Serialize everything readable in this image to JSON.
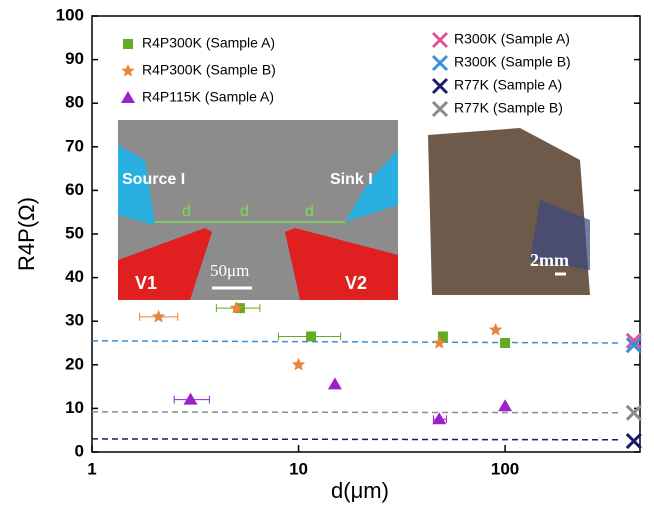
{
  "chart_data": {
    "type": "scatter",
    "x_label": "d(μm)",
    "y_label": "R4P(Ω)",
    "xscale": "log",
    "xlim": [
      1,
      450
    ],
    "xticks": [
      1,
      10,
      100
    ],
    "ylim": [
      0,
      100
    ],
    "yticks": [
      0,
      10,
      20,
      30,
      40,
      50,
      60,
      70,
      80,
      90,
      100
    ],
    "series": [
      {
        "name": "R4P300K (Sample A)",
        "color": "#66aa22",
        "marker": "square",
        "x": [
          5.2,
          11.5,
          50,
          100
        ],
        "values": [
          33,
          26.5,
          26.5,
          25
        ],
        "x_range": [
          [
            4,
            6.5
          ],
          [
            8,
            16
          ],
          null,
          null
        ]
      },
      {
        "name": "R4P300K (Sample B)",
        "color": "#e8853a",
        "marker": "star",
        "x": [
          2.1,
          5,
          10,
          48,
          90
        ],
        "values": [
          31,
          33,
          20,
          25,
          28
        ],
        "x_range": [
          [
            1.7,
            2.6
          ],
          null,
          null,
          null,
          null
        ]
      },
      {
        "name": "R4P115K (Sample A)",
        "color": "#9b22c8",
        "marker": "triangle",
        "x": [
          3,
          15,
          48,
          100
        ],
        "values": [
          12,
          15.5,
          7.5,
          10.5
        ],
        "x_range": [
          [
            2.5,
            3.7
          ],
          null,
          [
            45,
            52
          ],
          null
        ]
      },
      {
        "name": "R300K (Sample A)",
        "color": "#e0529a",
        "marker": "x",
        "x": [
          420
        ],
        "values": [
          25.5
        ]
      },
      {
        "name": "R300K (Sample B)",
        "color": "#3a8fd8",
        "marker": "x",
        "x": [
          420
        ],
        "values": [
          24.5
        ]
      },
      {
        "name": "R77K (Sample A)",
        "color": "#1a1a6a",
        "marker": "x",
        "x": [
          420
        ],
        "values": [
          2.5
        ]
      },
      {
        "name": "R77K (Sample B)",
        "color": "#8a8a8a",
        "marker": "x",
        "x": [
          420
        ],
        "values": [
          9
        ]
      }
    ],
    "fit_lines": [
      {
        "color": "#3a8fd8",
        "values": [
          25.5,
          25
        ]
      },
      {
        "color": "#8a8a8a",
        "values": [
          9.2,
          9
        ]
      },
      {
        "color": "#1a1a6a",
        "values": [
          3,
          2.8
        ]
      }
    ],
    "insets": {
      "source": "Source I",
      "sink": "Sink I",
      "d": "d",
      "v1": "V1",
      "v2": "V2",
      "scale_sem": "50μm",
      "scale_photo": "2mm"
    }
  }
}
